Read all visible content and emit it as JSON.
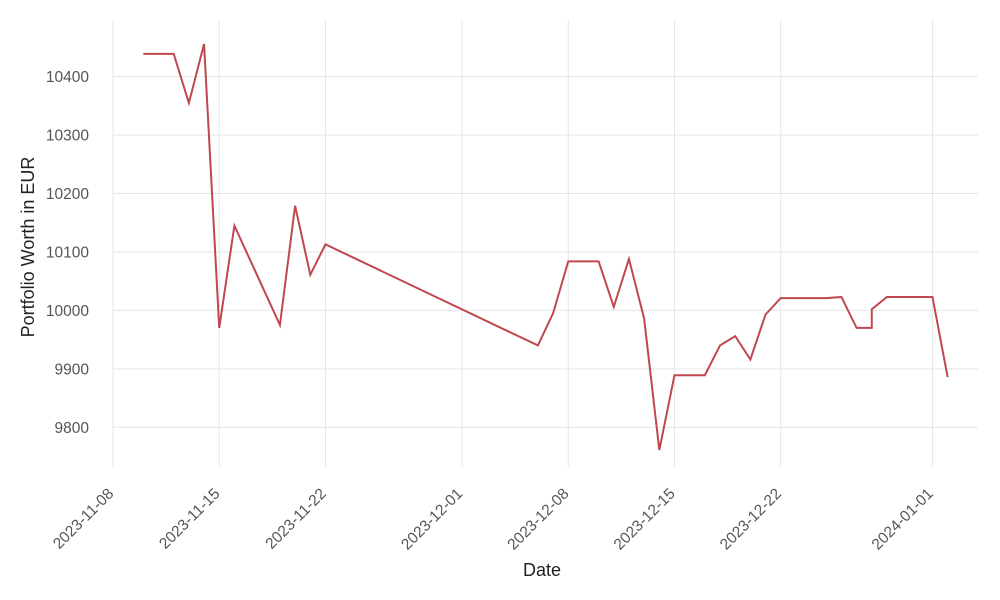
{
  "chart_data": {
    "type": "line",
    "title": "",
    "xlabel": "Date",
    "ylabel": "Portfolio Worth in EUR",
    "x_tick_labels": [
      "2023-11-08",
      "2023-11-15",
      "2023-11-22",
      "2023-12-01",
      "2023-12-08",
      "2023-12-15",
      "2023-12-22",
      "2024-01-01"
    ],
    "y_ticks": [
      9800,
      9900,
      10000,
      10100,
      10200,
      10300,
      10400
    ],
    "xlim": [
      "2023-11-08",
      "2024-01-04"
    ],
    "ylim": [
      9732,
      10497
    ],
    "grid": true,
    "legend": "none",
    "line_color": "#c0474f",
    "series": [
      {
        "x": [
          "2023-11-10",
          "2023-11-11",
          "2023-11-12",
          "2023-11-13",
          "2023-11-14",
          "2023-11-15",
          "2023-11-16",
          "2023-11-19",
          "2023-11-20",
          "2023-11-21",
          "2023-11-22",
          "2023-12-06",
          "2023-12-07",
          "2023-12-08",
          "2023-12-10",
          "2023-12-11",
          "2023-12-12",
          "2023-12-13",
          "2023-12-14",
          "2023-12-15",
          "2023-12-17",
          "2023-12-18",
          "2023-12-19",
          "2023-12-20",
          "2023-12-21",
          "2023-12-22",
          "2023-12-25",
          "2023-12-26",
          "2023-12-27",
          "2023-12-28",
          "2023-12-28",
          "2023-12-29",
          "2024-01-01",
          "2024-01-02"
        ],
        "values": [
          10439,
          10439,
          10439,
          10355,
          10456,
          9970,
          10145,
          9975,
          10179,
          10061,
          10113,
          9940,
          9995,
          10084,
          10084,
          10006,
          10088,
          9986,
          9761,
          9889,
          9889,
          9940,
          9956,
          9916,
          9993,
          10021,
          10021,
          10023,
          9970,
          9970,
          10002,
          10023,
          10023,
          9886
        ]
      }
    ]
  }
}
